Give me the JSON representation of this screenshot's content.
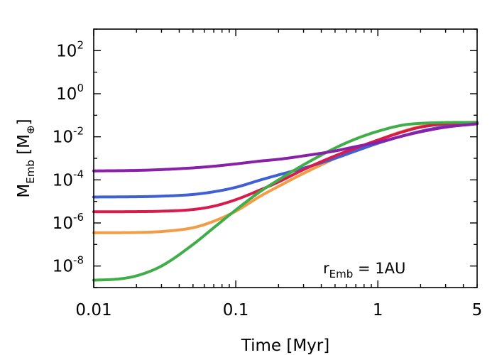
{
  "chart_data": {
    "type": "line",
    "title": "",
    "xlabel": "Time [Myr]",
    "ylabel": {
      "main": "M",
      "sub": "Emb",
      "unit_open": " [M",
      "unit_sub": "⊕",
      "unit_close": "]"
    },
    "xscale": "log",
    "yscale": "log",
    "xlim": [
      0.01,
      5
    ],
    "ylim": [
      1e-09,
      1000
    ],
    "xticks": [
      {
        "value": 0.01,
        "label": "0.01"
      },
      {
        "value": 0.1,
        "label": "0.1"
      },
      {
        "value": 1,
        "label": "1"
      },
      {
        "value": 5,
        "label": "5"
      }
    ],
    "yticks": [
      {
        "value": 1e-08,
        "base": "10",
        "exp": "-8"
      },
      {
        "value": 1e-06,
        "base": "10",
        "exp": "-6"
      },
      {
        "value": 0.0001,
        "base": "10",
        "exp": "-4"
      },
      {
        "value": 0.01,
        "base": "10",
        "exp": "-2"
      },
      {
        "value": 1,
        "base": "10",
        "exp": "0"
      },
      {
        "value": 100,
        "base": "10",
        "exp": "2"
      }
    ],
    "annotation": {
      "main": "r",
      "sub": "Emb",
      "rest": " = 1AU",
      "location": "bottom-right"
    },
    "grid": false,
    "series": [
      {
        "name": "orange",
        "color": "#f39c45",
        "x": [
          0.01,
          0.02,
          0.03,
          0.05,
          0.07,
          0.1,
          0.15,
          0.2,
          0.3,
          0.5,
          0.7,
          1,
          1.5,
          2,
          3,
          5
        ],
        "y": [
          3.5e-07,
          3.6e-07,
          4e-07,
          6e-07,
          1.2e-06,
          3.5e-06,
          1.8e-05,
          5e-05,
          0.0002,
          0.001,
          0.0028,
          0.007,
          0.018,
          0.03,
          0.042,
          0.047
        ]
      },
      {
        "name": "blue",
        "color": "#3f5fd6",
        "x": [
          0.01,
          0.02,
          0.03,
          0.05,
          0.07,
          0.1,
          0.15,
          0.2,
          0.3,
          0.5,
          0.7,
          1,
          1.5,
          2,
          3,
          5
        ],
        "y": [
          1.6e-05,
          1.65e-05,
          1.75e-05,
          2.1e-05,
          2.8e-05,
          4.5e-05,
          0.0001,
          0.00017,
          0.00035,
          0.001,
          0.0022,
          0.005,
          0.011,
          0.018,
          0.03,
          0.043
        ]
      },
      {
        "name": "red",
        "color": "#d81b4a",
        "x": [
          0.01,
          0.02,
          0.03,
          0.05,
          0.07,
          0.1,
          0.15,
          0.2,
          0.3,
          0.5,
          0.7,
          1,
          1.5,
          2,
          3,
          5
        ],
        "y": [
          3.3e-06,
          3.35e-06,
          3.5e-06,
          4.2e-06,
          6e-06,
          1.2e-05,
          3.5e-05,
          8e-05,
          0.0003,
          0.0013,
          0.003,
          0.007,
          0.017,
          0.028,
          0.04,
          0.046
        ]
      },
      {
        "name": "green",
        "color": "#3fae49",
        "x": [
          0.01,
          0.015,
          0.02,
          0.03,
          0.05,
          0.07,
          0.1,
          0.15,
          0.2,
          0.3,
          0.5,
          0.7,
          1,
          1.5,
          2,
          3,
          5
        ],
        "y": [
          2.2e-09,
          2.5e-09,
          3.5e-09,
          1e-08,
          1e-07,
          6e-07,
          4e-06,
          3e-05,
          0.0001,
          0.0005,
          0.003,
          0.008,
          0.018,
          0.035,
          0.042,
          0.046,
          0.047
        ]
      },
      {
        "name": "purple",
        "color": "#8a1fa8",
        "x": [
          0.01,
          0.02,
          0.03,
          0.05,
          0.07,
          0.1,
          0.15,
          0.2,
          0.3,
          0.5,
          0.7,
          1,
          1.5,
          2,
          3,
          5
        ],
        "y": [
          0.00026,
          0.000275,
          0.0003,
          0.00036,
          0.00043,
          0.00055,
          0.00075,
          0.0009,
          0.0013,
          0.0022,
          0.0035,
          0.0055,
          0.011,
          0.017,
          0.028,
          0.04
        ]
      }
    ]
  }
}
